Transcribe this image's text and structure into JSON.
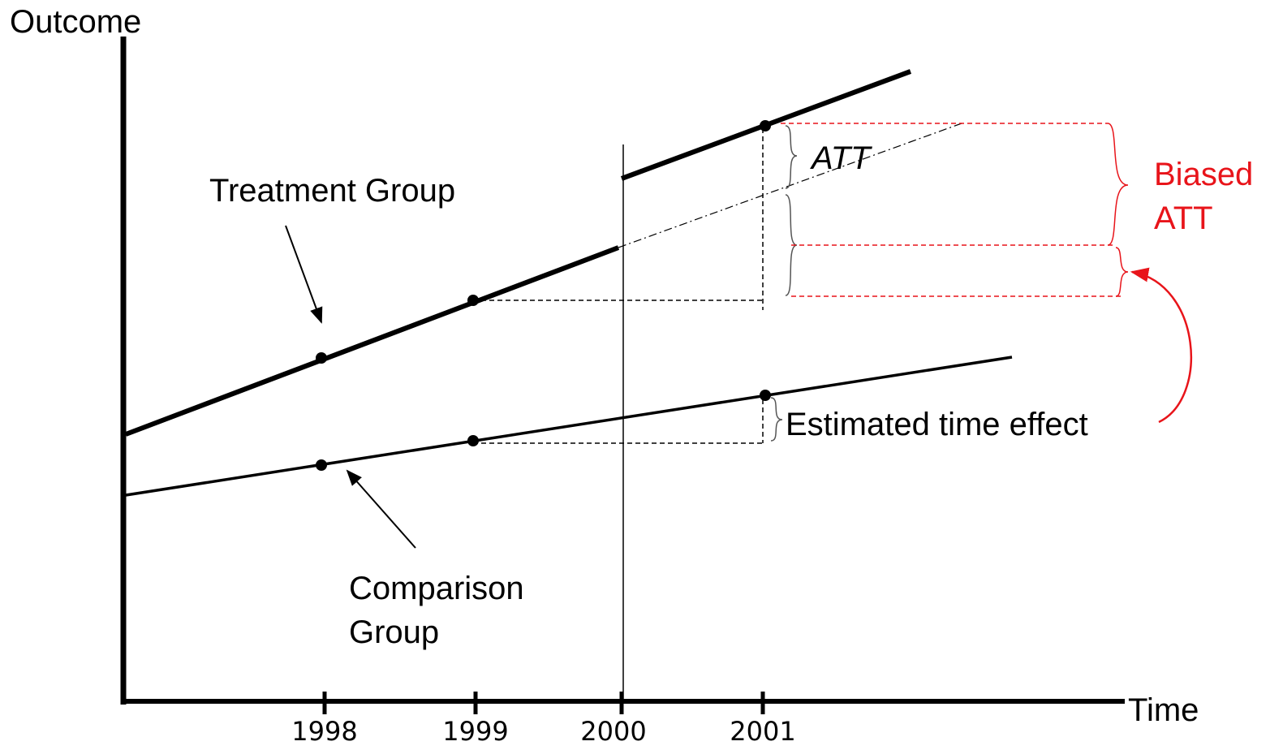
{
  "axes": {
    "y_label": "Outcome",
    "x_label": "Time",
    "ticks": [
      "1998",
      "1999",
      "2000",
      "2001"
    ]
  },
  "labels": {
    "treatment": "Treatment Group",
    "comparison": [
      "Comparison",
      "Group"
    ],
    "att": "ATT",
    "biased_att": [
      "Biased",
      "ATT"
    ],
    "time_effect": "Estimated time effect"
  }
}
